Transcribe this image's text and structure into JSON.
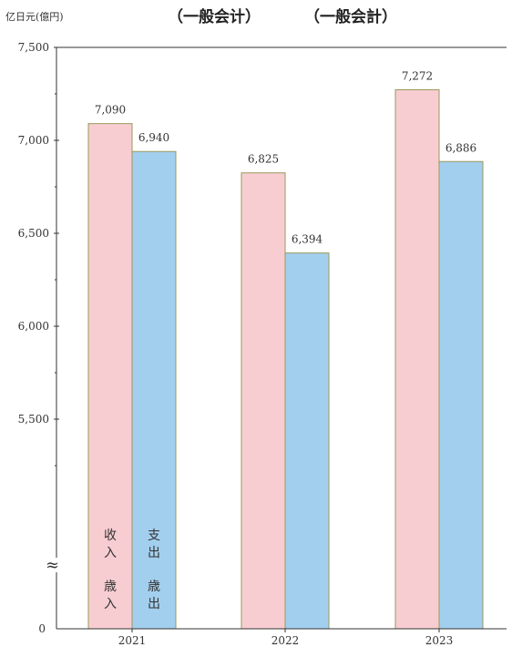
{
  "chart_data": {
    "type": "bar",
    "title_left": "（一般会计）",
    "title_right": "（一般会計）",
    "unit_label": "亿日元(億円)",
    "categories": [
      "2021",
      "2022",
      "2023"
    ],
    "series": [
      {
        "name": "收入 歳入",
        "values": [
          7090,
          6825,
          7272
        ],
        "color": "#f7cdd2",
        "labels_cn": [
          "收",
          "入"
        ],
        "labels_jp": [
          "歳",
          "入"
        ]
      },
      {
        "name": "支出 歳出",
        "values": [
          6940,
          6394,
          6886
        ],
        "color": "#a3cfee",
        "labels_cn": [
          "支",
          "出"
        ],
        "labels_jp": [
          "歳",
          "出"
        ]
      }
    ],
    "data_labels": [
      [
        "7,090",
        "6,825",
        "7,272"
      ],
      [
        "6,940",
        "6,394",
        "6,886"
      ]
    ],
    "y_ticks": [
      7500,
      7000,
      6500,
      6000,
      5500
    ],
    "y_tick_labels": [
      "7,500",
      "7,000",
      "6,500",
      "6,000",
      "5,500"
    ],
    "y_zero_label": "0",
    "axis_break_symbol": "≈",
    "ylim": [
      5000,
      7500
    ],
    "axis_break": true,
    "bar_edge_color": "#9a9a5a"
  }
}
